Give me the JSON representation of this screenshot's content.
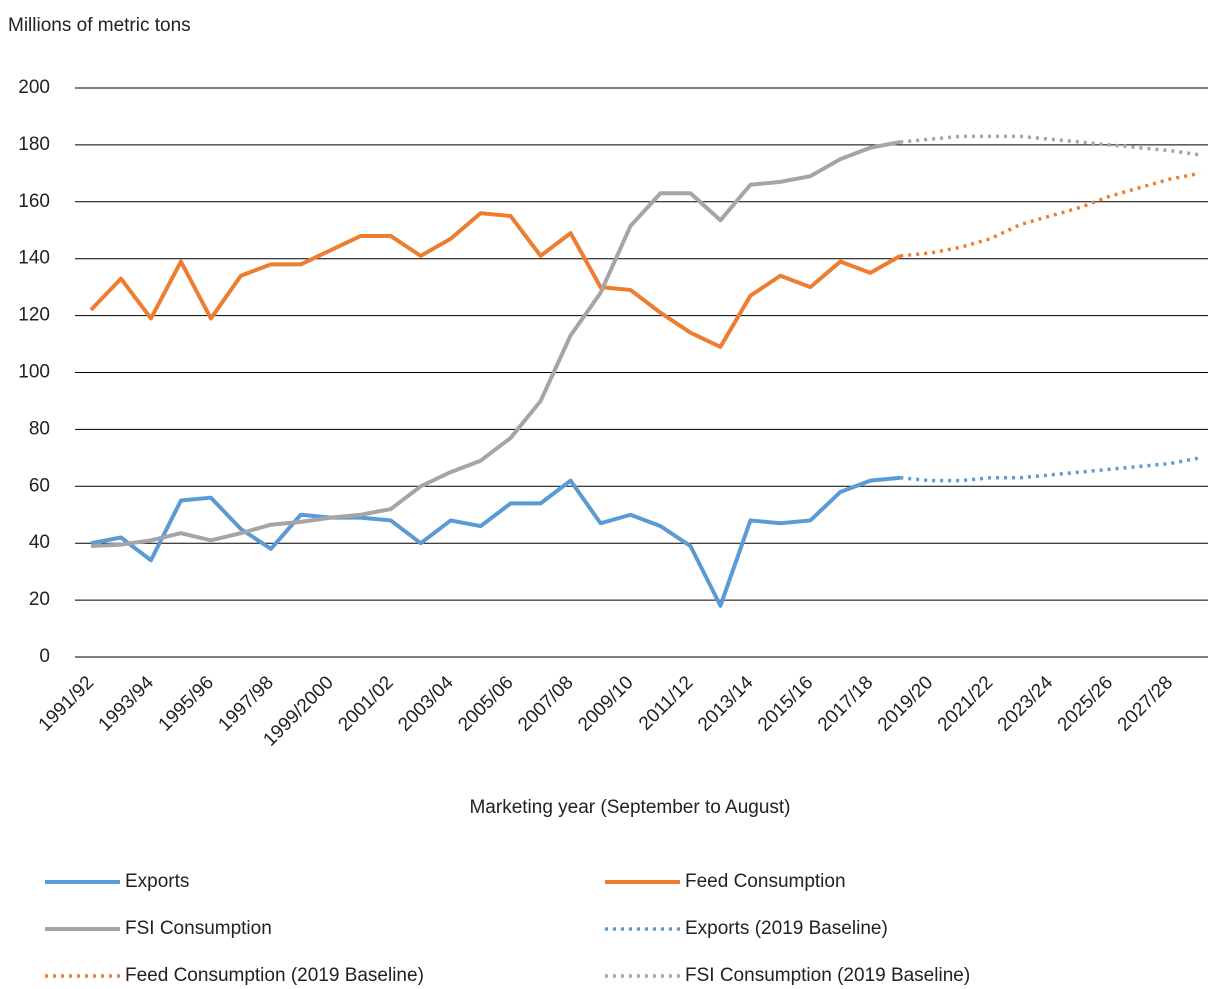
{
  "chart_data": {
    "type": "line",
    "y_label": "Millions of metric tons",
    "x_label": "Marketing year (September to August)",
    "categories": [
      "1991/92",
      null,
      "1993/94",
      null,
      "1995/96",
      null,
      "1997/98",
      null,
      "1999/2000",
      null,
      "2001/02",
      null,
      "2003/04",
      null,
      "2005/06",
      null,
      "2007/08",
      null,
      "2009/10",
      null,
      "2011/12",
      null,
      "2013/14",
      null,
      "2015/16",
      null,
      "2017/18",
      null,
      "2019/20",
      null,
      "2021/22",
      null,
      "2023/24",
      null,
      "2025/26",
      null,
      "2027/28",
      null
    ],
    "ylim": [
      0,
      200
    ],
    "yticks": [
      0,
      20,
      40,
      60,
      80,
      100,
      120,
      140,
      160,
      180,
      200
    ],
    "grid": true,
    "series": [
      {
        "name": "Exports",
        "color": "#5b9bd5",
        "style": "solid",
        "values": [
          40,
          42,
          34,
          55,
          56,
          45,
          38,
          50,
          49,
          49,
          48,
          40,
          48,
          46,
          54,
          54,
          62,
          47,
          50,
          46,
          39,
          18,
          48,
          47,
          48,
          58,
          62,
          63,
          null,
          null,
          null,
          null,
          null,
          null,
          null,
          null,
          null,
          null
        ]
      },
      {
        "name": "Feed Consumption",
        "color": "#ed7d31",
        "style": "solid",
        "values": [
          122,
          133,
          119,
          139,
          119,
          134,
          138,
          138,
          143,
          148,
          148,
          141,
          147,
          156,
          155,
          141,
          149,
          130,
          129,
          121,
          114,
          109,
          127,
          134,
          130,
          139,
          135,
          141,
          null,
          null,
          null,
          null,
          null,
          null,
          null,
          null,
          null,
          null
        ]
      },
      {
        "name": "FSI Consumption",
        "color": "#a5a5a5",
        "style": "solid",
        "values": [
          39,
          39.5,
          41,
          43.5,
          41,
          43.5,
          46.5,
          47.5,
          49,
          50,
          52,
          60,
          65,
          69,
          77,
          90,
          113,
          128,
          151.5,
          163,
          163,
          153.5,
          166,
          167,
          169,
          175,
          179,
          181,
          null,
          null,
          null,
          null,
          null,
          null,
          null,
          null,
          null,
          null
        ]
      },
      {
        "name": "Exports (2019 Baseline)",
        "color": "#5b9bd5",
        "style": "dotted",
        "values": [
          null,
          null,
          null,
          null,
          null,
          null,
          null,
          null,
          null,
          null,
          null,
          null,
          null,
          null,
          null,
          null,
          null,
          null,
          null,
          null,
          null,
          null,
          null,
          null,
          null,
          null,
          null,
          63,
          62,
          62,
          63,
          63,
          64,
          65,
          66,
          67,
          68,
          70
        ]
      },
      {
        "name": "Feed Consumption (2019 Baseline)",
        "color": "#ed7d31",
        "style": "dotted",
        "values": [
          null,
          null,
          null,
          null,
          null,
          null,
          null,
          null,
          null,
          null,
          null,
          null,
          null,
          null,
          null,
          null,
          null,
          null,
          null,
          null,
          null,
          null,
          null,
          null,
          null,
          null,
          null,
          141,
          142,
          144,
          147,
          152,
          155,
          158,
          162,
          165,
          168,
          170
        ]
      },
      {
        "name": "FSI Consumption (2019 Baseline)",
        "color": "#a5a5a5",
        "style": "dotted",
        "values": [
          null,
          null,
          null,
          null,
          null,
          null,
          null,
          null,
          null,
          null,
          null,
          null,
          null,
          null,
          null,
          null,
          null,
          null,
          null,
          null,
          null,
          null,
          null,
          null,
          null,
          null,
          null,
          181,
          182,
          183,
          183,
          183,
          182,
          181,
          180,
          179,
          178,
          176.5
        ]
      }
    ]
  }
}
